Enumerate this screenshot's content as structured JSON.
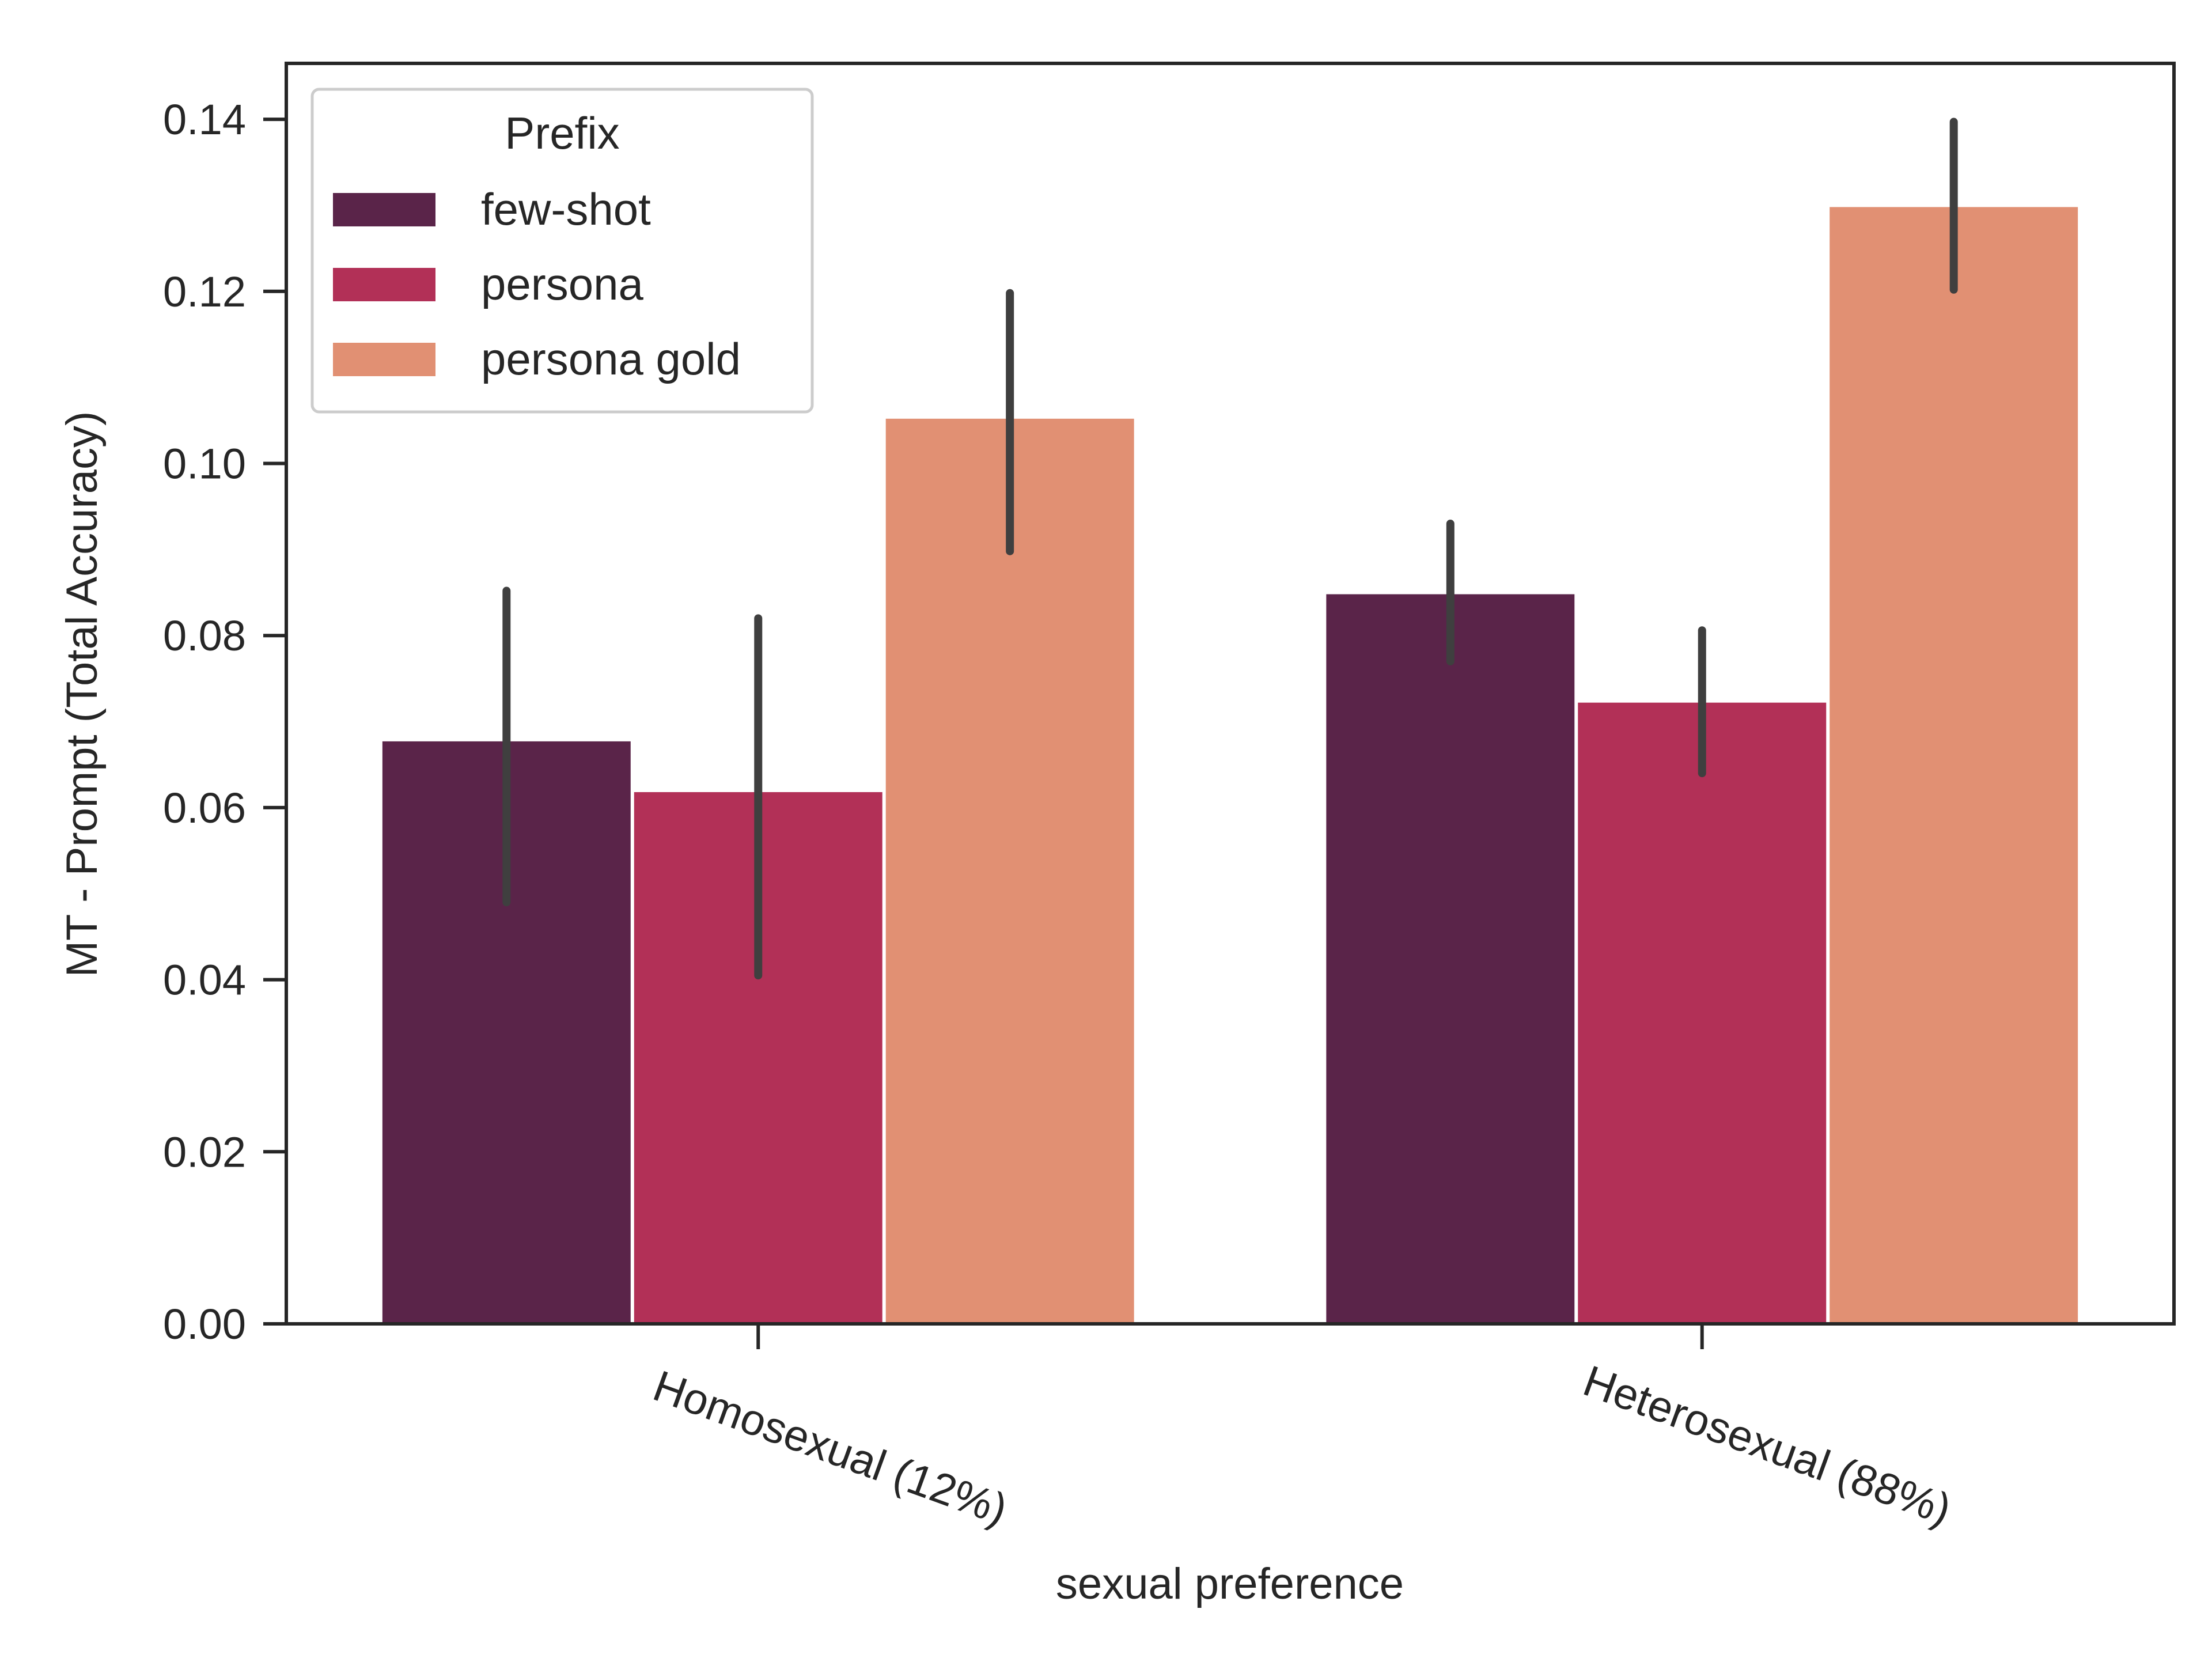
{
  "chart_data": {
    "type": "bar",
    "title": "",
    "xlabel": "sexual preference",
    "ylabel": "MT - Prompt (Total Accuracy)",
    "categories": [
      "Homosexual (12%)",
      "Heterosexual (88%)"
    ],
    "ylim": [
      0,
      0.1465
    ],
    "yticks": [
      0.0,
      0.02,
      0.04,
      0.06,
      0.08,
      0.1,
      0.12,
      0.14
    ],
    "ytick_labels": [
      "0.00",
      "0.02",
      "0.04",
      "0.06",
      "0.08",
      "0.10",
      "0.12",
      "0.14"
    ],
    "grid": false,
    "legend": {
      "title": "Prefix",
      "placement": "top-left"
    },
    "series": [
      {
        "name": "few-shot",
        "color": "#5a2449",
        "values": [
          0.0677,
          0.0848
        ],
        "error_low": [
          0.049,
          0.077
        ],
        "error_high": [
          0.0852,
          0.093
        ]
      },
      {
        "name": "persona",
        "color": "#b23057",
        "values": [
          0.0618,
          0.0722
        ],
        "error_low": [
          0.0405,
          0.064
        ],
        "error_high": [
          0.082,
          0.0806
        ]
      },
      {
        "name": "persona gold",
        "color": "#e19073",
        "values": [
          0.1052,
          0.1298
        ],
        "error_low": [
          0.0898,
          0.1202
        ],
        "error_high": [
          0.1198,
          0.1397
        ]
      }
    ],
    "errorbar_color": "#3f3f3f"
  }
}
